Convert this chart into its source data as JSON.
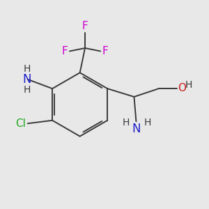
{
  "background_color": "#e8e8e8",
  "bond_color": "#3a3a3a",
  "atom_colors": {
    "N": "#2020cc",
    "O": "#cc2020",
    "F": "#cc00cc",
    "Cl": "#22aa22",
    "H": "#3a3a3a"
  },
  "font_size": 11,
  "fig_width": 3.0,
  "fig_height": 3.0,
  "dpi": 100
}
